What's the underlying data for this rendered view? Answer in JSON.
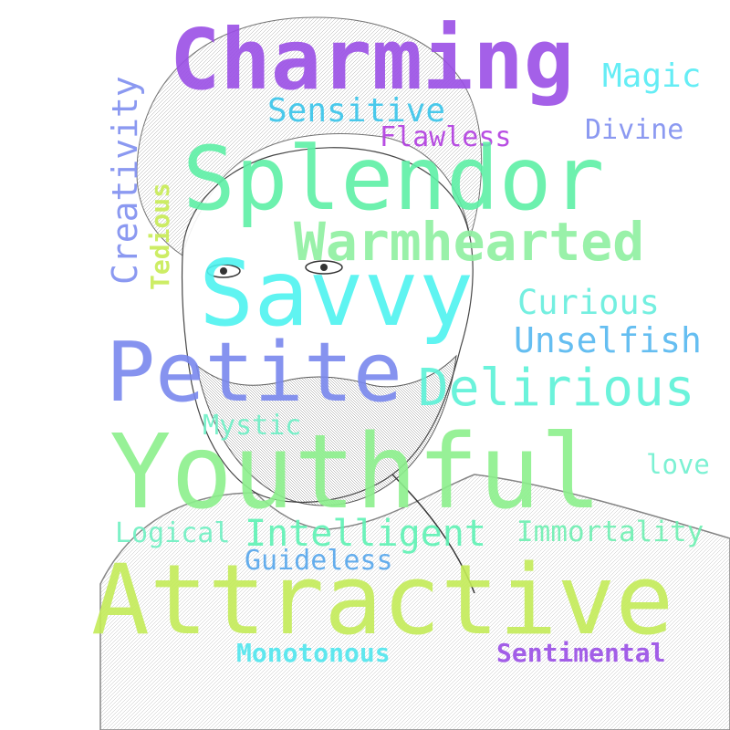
{
  "words": [
    {
      "id": "charming",
      "text": "Charming",
      "color": "#9b4fe6"
    },
    {
      "id": "magic",
      "text": "Magic",
      "color": "#55ecf5"
    },
    {
      "id": "sensitive",
      "text": "Sensitive",
      "color": "#38c5ea"
    },
    {
      "id": "flawless",
      "text": "Flawless",
      "color": "#b13be0"
    },
    {
      "id": "divine",
      "text": "Divine",
      "color": "#7f8ef0"
    },
    {
      "id": "creativity",
      "text": "Creativity",
      "color": "#7f8ef0"
    },
    {
      "id": "splendor",
      "text": "Splendor",
      "color": "#5ef0a6"
    },
    {
      "id": "tedious",
      "text": "Tedious",
      "color": "#c8ec55"
    },
    {
      "id": "warmhearted",
      "text": "Warmhearted",
      "color": "#8ef0a0"
    },
    {
      "id": "savvy",
      "text": "Savvy",
      "color": "#4ef3f0"
    },
    {
      "id": "curious",
      "text": "Curious",
      "color": "#66eedd"
    },
    {
      "id": "unselfish",
      "text": "Unselfish",
      "color": "#55b8f0"
    },
    {
      "id": "petite",
      "text": "Petite",
      "color": "#7a88ee"
    },
    {
      "id": "delirious",
      "text": "Delirious",
      "color": "#5cf2d8"
    },
    {
      "id": "mystic",
      "text": "Mystic",
      "color": "#6ef0c6"
    },
    {
      "id": "youthful",
      "text": "Youthful",
      "color": "#8cf08c"
    },
    {
      "id": "love",
      "text": "love",
      "color": "#6ef0cf"
    },
    {
      "id": "logical",
      "text": "Logical",
      "color": "#6ef0c2"
    },
    {
      "id": "intelligent",
      "text": "Intelligent",
      "color": "#5ef2b4"
    },
    {
      "id": "immortality",
      "text": "Immortality",
      "color": "#6ef0b2"
    },
    {
      "id": "guideless",
      "text": "Guideless",
      "color": "#55a6ec"
    },
    {
      "id": "attractive",
      "text": "Attractive",
      "color": "#c4ec58"
    },
    {
      "id": "monotonous",
      "text": "Monotonous",
      "color": "#4fe6ee"
    },
    {
      "id": "sentimental",
      "text": "Sentimental",
      "color": "#9a4ee6"
    }
  ]
}
